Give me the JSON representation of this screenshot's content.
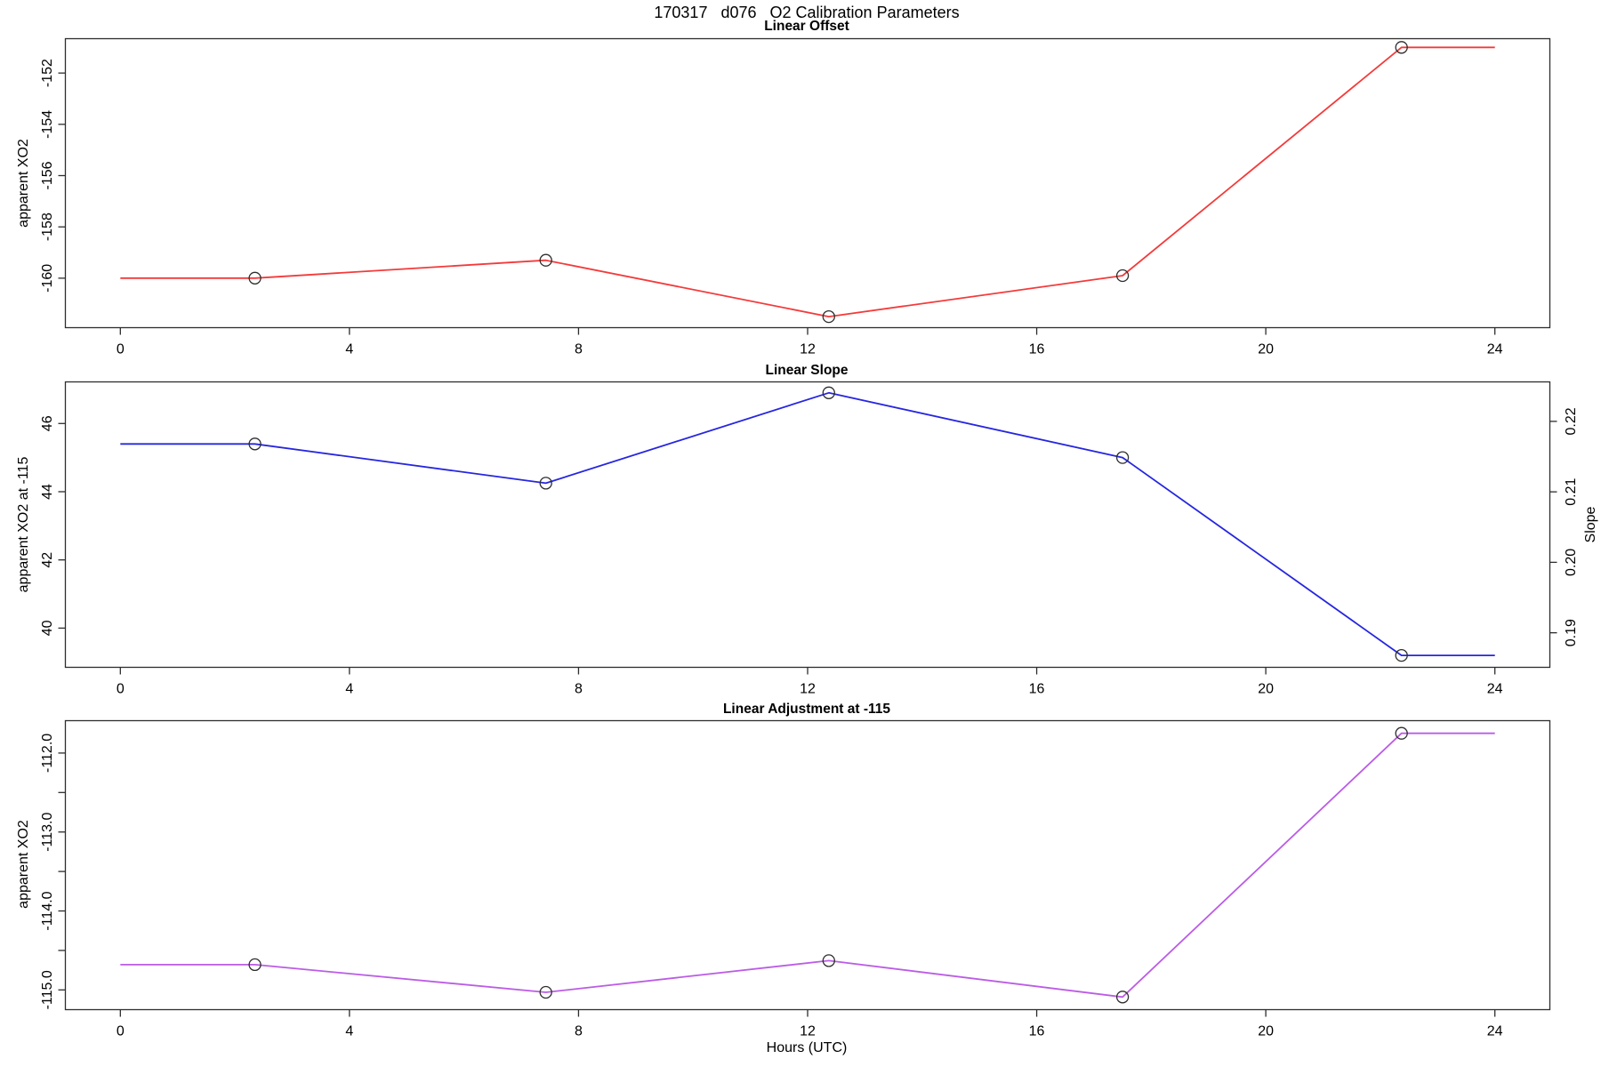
{
  "header": {
    "title": "170317   d076   O2 Calibration Parameters"
  },
  "xaxis": {
    "label": "Hours (UTC)",
    "ticks": [
      0,
      4,
      8,
      12,
      16,
      20,
      24
    ],
    "domain": [
      -0.96,
      24.96
    ]
  },
  "chart_data": [
    {
      "type": "line",
      "title": "Linear Offset",
      "ylabel": "apparent XO2",
      "color": "#f43a3a",
      "marker": "open-circle",
      "x": [
        2.35,
        7.43,
        12.37,
        17.5,
        22.37
      ],
      "y": [
        -160.0,
        -159.3,
        -161.5,
        -159.9,
        -151.0
      ],
      "extend_x": [
        0,
        24
      ],
      "yticks": [
        {
          "v": -152,
          "label": "-152"
        },
        {
          "v": -154,
          "label": "-154"
        },
        {
          "v": -156,
          "label": "-156"
        },
        {
          "v": -158,
          "label": "-158"
        },
        {
          "v": -160,
          "label": "-160"
        }
      ],
      "ylim": [
        -161.93,
        -150.66
      ],
      "xlim": [
        -0.96,
        24.96
      ],
      "grid": false
    },
    {
      "type": "line",
      "title": "Linear Slope",
      "ylabel": "apparent XO2 at -115",
      "ylabel_right": "Slope",
      "color": "#2626e0",
      "marker": "open-circle",
      "x": [
        2.35,
        7.43,
        12.37,
        17.5,
        22.37
      ],
      "y": [
        45.4,
        44.25,
        46.9,
        45.0,
        39.2
      ],
      "y_right": [
        0.217,
        0.211,
        0.224,
        0.215,
        0.187
      ],
      "extend_x": [
        0,
        24
      ],
      "yticks": [
        {
          "v": 46,
          "label": "46"
        },
        {
          "v": 44,
          "label": "44"
        },
        {
          "v": 42,
          "label": "42"
        },
        {
          "v": 40,
          "label": "40"
        }
      ],
      "yticks_right": [
        {
          "v": 0.22,
          "label": "0.22"
        },
        {
          "v": 0.21,
          "label": "0.21"
        },
        {
          "v": 0.2,
          "label": "0.20"
        },
        {
          "v": 0.19,
          "label": "0.19"
        }
      ],
      "ylim": [
        38.85,
        47.22
      ],
      "ylim_right": [
        0.1851,
        0.2256
      ],
      "xlim": [
        -0.96,
        24.96
      ],
      "grid": false
    },
    {
      "type": "line",
      "title": "Linear Adjustment at -115",
      "ylabel": "apparent XO2",
      "color": "#bb5ce6",
      "marker": "open-circle",
      "x": [
        2.35,
        7.43,
        12.37,
        17.5,
        22.37
      ],
      "y": [
        -114.68,
        -115.03,
        -114.63,
        -115.09,
        -111.75
      ],
      "extend_x": [
        0,
        24
      ],
      "yticks": [
        {
          "v": -112.0,
          "label": "-112.0"
        },
        {
          "v": -113.0,
          "label": "-113.0"
        },
        {
          "v": -114.0,
          "label": "-114.0"
        },
        {
          "v": -115.0,
          "label": "-115.0"
        }
      ],
      "yticks_minor": [
        -112.5,
        -113.5,
        -114.5
      ],
      "ylim": [
        -115.25,
        -111.59
      ],
      "xlim": [
        -0.96,
        24.96
      ],
      "grid": false
    }
  ]
}
